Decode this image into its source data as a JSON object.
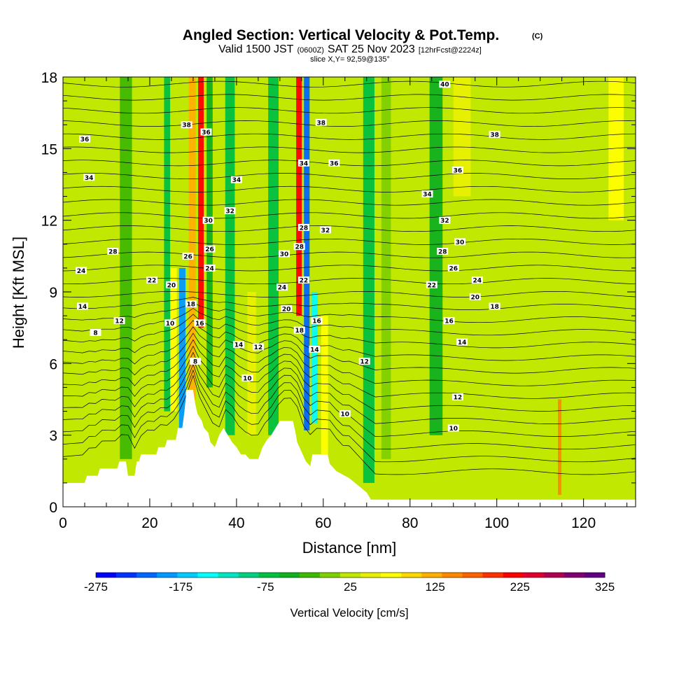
{
  "chart_data": {
    "type": "heatmap",
    "title": "Angled Section: Vertical Velocity & Pot.Temp.",
    "title_mark": "(C)",
    "subtitle_main": "Valid 1500 JST",
    "subtitle_z": "(0600Z)",
    "subtitle_date": "SAT 25 Nov 2023",
    "subtitle_fcst": "[12hrFcst@2224z]",
    "slice_label": "slice X,Y= 92,59@135°",
    "xlabel": "Distance [nm]",
    "ylabel": "Height [Kft MSL]",
    "xlim": [
      0,
      132
    ],
    "ylim": [
      0,
      18
    ],
    "x_ticks": [
      "0",
      "20",
      "40",
      "60",
      "80",
      "100",
      "120"
    ],
    "y_ticks": [
      "0",
      "3",
      "6",
      "9",
      "12",
      "15",
      "18"
    ],
    "colorbar": {
      "label": "Vertical Velocity [cm/s]",
      "min": -275,
      "max": 325,
      "step": 25,
      "tick_labels": [
        "-275",
        "-175",
        "-75",
        "25",
        "125",
        "225",
        "325"
      ],
      "colors": [
        "#0000ff",
        "#0033ff",
        "#0066ff",
        "#0099ff",
        "#00ccff",
        "#00ffff",
        "#00e6c0",
        "#00d080",
        "#00c040",
        "#10b020",
        "#40b800",
        "#80d000",
        "#c0e800",
        "#e8f000",
        "#ffff00",
        "#ffd800",
        "#ffb000",
        "#ff8800",
        "#ff6000",
        "#ff3000",
        "#ff0000",
        "#e00030",
        "#b00050",
        "#800070",
        "#600080"
      ]
    },
    "background_value": 35,
    "features": [
      {
        "x": 27.5,
        "width": 1.5,
        "ymin": 2,
        "ymax": 10,
        "value": -190
      },
      {
        "x": 29.8,
        "width": 1.6,
        "ymin": 4.5,
        "ymax": 18,
        "value": 140
      },
      {
        "x": 31.8,
        "width": 1.3,
        "ymin": 7.5,
        "ymax": 18,
        "value": 240
      },
      {
        "x": 33.8,
        "width": 1.4,
        "ymin": 5,
        "ymax": 18,
        "value": -30
      },
      {
        "x": 54.4,
        "width": 1.3,
        "ymin": 8,
        "ymax": 18,
        "value": 240
      },
      {
        "x": 56.2,
        "width": 1.3,
        "ymin": 3.2,
        "ymax": 18,
        "value": -220
      },
      {
        "x": 58.0,
        "width": 1.5,
        "ymin": 3.5,
        "ymax": 9,
        "value": -140
      },
      {
        "x": 60.3,
        "width": 1.6,
        "ymin": 2,
        "ymax": 8,
        "value": 80
      },
      {
        "x": 25.5,
        "width": 1.5,
        "ymin": 4,
        "ymax": 10,
        "value": 90
      },
      {
        "x": 24.0,
        "width": 1.4,
        "ymin": 4,
        "ymax": 18,
        "value": -60
      },
      {
        "x": 38.5,
        "width": 2.2,
        "ymin": 3,
        "ymax": 18,
        "value": -70
      },
      {
        "x": 43.5,
        "width": 2.0,
        "ymin": 3,
        "ymax": 9,
        "value": 60
      },
      {
        "x": 48.5,
        "width": 2.4,
        "ymin": 3,
        "ymax": 18,
        "value": -60
      },
      {
        "x": 14.5,
        "width": 2.8,
        "ymin": 2,
        "ymax": 18,
        "value": -20
      },
      {
        "x": 70.5,
        "width": 2.6,
        "ymin": 1,
        "ymax": 18,
        "value": -60
      },
      {
        "x": 74.5,
        "width": 2.2,
        "ymin": 2,
        "ymax": 18,
        "value": 10
      },
      {
        "x": 86.0,
        "width": 3.0,
        "ymin": 3,
        "ymax": 18,
        "value": -30
      },
      {
        "x": 114.5,
        "width": 0.8,
        "ymin": 0.5,
        "ymax": 4.5,
        "value": 150
      },
      {
        "x": 127.5,
        "width": 3.5,
        "ymin": 12,
        "ymax": 18,
        "value": 75
      },
      {
        "x": 92.0,
        "width": 4.0,
        "ymin": 13,
        "ymax": 18,
        "value": 60
      }
    ],
    "terrain": [
      [
        0,
        1
      ],
      [
        5,
        1
      ],
      [
        5.5,
        1.3
      ],
      [
        8,
        1.3
      ],
      [
        8.5,
        1.6
      ],
      [
        12.5,
        1.6
      ],
      [
        13,
        1.9
      ],
      [
        14.5,
        1.9
      ],
      [
        15,
        1.3
      ],
      [
        16.5,
        1.3
      ],
      [
        17,
        1.9
      ],
      [
        17.5,
        1.9
      ],
      [
        18,
        2.2
      ],
      [
        21.5,
        2.2
      ],
      [
        22,
        2.5
      ],
      [
        23.5,
        2.5
      ],
      [
        24,
        2.8
      ],
      [
        26,
        2.8
      ],
      [
        26.5,
        3.3
      ],
      [
        27.5,
        3.3
      ],
      [
        28,
        4.0
      ],
      [
        28.5,
        4.9
      ],
      [
        30,
        4.9
      ],
      [
        30.5,
        4.3
      ],
      [
        31,
        3.9
      ],
      [
        32,
        3.6
      ],
      [
        32.5,
        3.3
      ],
      [
        33.5,
        3.1
      ],
      [
        34,
        2.7
      ],
      [
        35,
        2.5
      ],
      [
        36,
        3.0
      ],
      [
        37,
        3.3
      ],
      [
        38,
        3.0
      ],
      [
        39,
        2.7
      ],
      [
        40,
        2.5
      ],
      [
        41,
        2.2
      ],
      [
        42,
        2.2
      ],
      [
        43,
        2.0
      ],
      [
        45,
        2.0
      ],
      [
        46,
        2.5
      ],
      [
        47,
        2.8
      ],
      [
        48,
        3.0
      ],
      [
        49,
        3.3
      ],
      [
        50,
        3.6
      ],
      [
        53,
        3.6
      ],
      [
        53.5,
        3.2
      ],
      [
        54,
        2.7
      ],
      [
        55,
        2.3
      ],
      [
        56,
        1.9
      ],
      [
        57,
        1.7
      ],
      [
        57.5,
        2.2
      ],
      [
        61,
        2.2
      ],
      [
        61.5,
        1.8
      ],
      [
        63,
        1.5
      ],
      [
        66,
        1.2
      ],
      [
        68,
        0.9
      ],
      [
        70,
        0.6
      ],
      [
        71,
        0.3
      ],
      [
        132,
        0.3
      ]
    ],
    "theta_labels": [
      {
        "x": 5,
        "y": 15.4,
        "text": "36"
      },
      {
        "x": 6,
        "y": 13.8,
        "text": "34"
      },
      {
        "x": 11.5,
        "y": 10.7,
        "text": "28"
      },
      {
        "x": 4.2,
        "y": 9.9,
        "text": "24"
      },
      {
        "x": 4.5,
        "y": 8.4,
        "text": "14"
      },
      {
        "x": 13,
        "y": 7.8,
        "text": "12"
      },
      {
        "x": 7.5,
        "y": 7.3,
        "text": "8"
      },
      {
        "x": 20.5,
        "y": 9.5,
        "text": "22"
      },
      {
        "x": 25,
        "y": 9.3,
        "text": "20"
      },
      {
        "x": 24.7,
        "y": 7.7,
        "text": "10"
      },
      {
        "x": 28.5,
        "y": 16,
        "text": "38"
      },
      {
        "x": 33,
        "y": 15.7,
        "text": "36"
      },
      {
        "x": 40,
        "y": 13.7,
        "text": "34"
      },
      {
        "x": 38.5,
        "y": 12.4,
        "text": "32"
      },
      {
        "x": 33.5,
        "y": 12.0,
        "text": "30"
      },
      {
        "x": 33.8,
        "y": 10.8,
        "text": "26"
      },
      {
        "x": 28.8,
        "y": 10.5,
        "text": "26"
      },
      {
        "x": 33.8,
        "y": 10.0,
        "text": "24"
      },
      {
        "x": 29.5,
        "y": 8.5,
        "text": "18"
      },
      {
        "x": 31.5,
        "y": 7.7,
        "text": "16"
      },
      {
        "x": 30.5,
        "y": 6.1,
        "text": "8"
      },
      {
        "x": 40.5,
        "y": 6.8,
        "text": "14"
      },
      {
        "x": 45,
        "y": 6.7,
        "text": "12"
      },
      {
        "x": 42.5,
        "y": 5.4,
        "text": "10"
      },
      {
        "x": 59.5,
        "y": 16.1,
        "text": "38"
      },
      {
        "x": 55.5,
        "y": 14.4,
        "text": "34"
      },
      {
        "x": 62.5,
        "y": 14.4,
        "text": "36"
      },
      {
        "x": 55.5,
        "y": 11.7,
        "text": "28"
      },
      {
        "x": 60.5,
        "y": 11.6,
        "text": "32"
      },
      {
        "x": 51,
        "y": 10.6,
        "text": "30"
      },
      {
        "x": 54.5,
        "y": 10.9,
        "text": "28"
      },
      {
        "x": 55.5,
        "y": 9.5,
        "text": "22"
      },
      {
        "x": 50.5,
        "y": 9.2,
        "text": "24"
      },
      {
        "x": 51.5,
        "y": 8.3,
        "text": "20"
      },
      {
        "x": 58.5,
        "y": 7.8,
        "text": "16"
      },
      {
        "x": 54.5,
        "y": 7.4,
        "text": "18"
      },
      {
        "x": 58,
        "y": 6.6,
        "text": "14"
      },
      {
        "x": 69.5,
        "y": 6.1,
        "text": "12"
      },
      {
        "x": 65,
        "y": 3.9,
        "text": "10"
      },
      {
        "x": 88,
        "y": 17.7,
        "text": "40"
      },
      {
        "x": 99.5,
        "y": 15.6,
        "text": "38"
      },
      {
        "x": 91,
        "y": 14.1,
        "text": "36"
      },
      {
        "x": 84,
        "y": 13.1,
        "text": "34"
      },
      {
        "x": 88,
        "y": 12.0,
        "text": "32"
      },
      {
        "x": 91.5,
        "y": 11.1,
        "text": "30"
      },
      {
        "x": 87.5,
        "y": 10.7,
        "text": "28"
      },
      {
        "x": 90,
        "y": 10.0,
        "text": "26"
      },
      {
        "x": 95.5,
        "y": 9.5,
        "text": "24"
      },
      {
        "x": 85,
        "y": 9.3,
        "text": "22"
      },
      {
        "x": 95,
        "y": 8.8,
        "text": "20"
      },
      {
        "x": 99.5,
        "y": 8.4,
        "text": "18"
      },
      {
        "x": 89,
        "y": 7.8,
        "text": "16"
      },
      {
        "x": 92,
        "y": 6.9,
        "text": "14"
      },
      {
        "x": 91,
        "y": 4.6,
        "text": "12"
      },
      {
        "x": 90,
        "y": 3.3,
        "text": "10"
      }
    ]
  }
}
